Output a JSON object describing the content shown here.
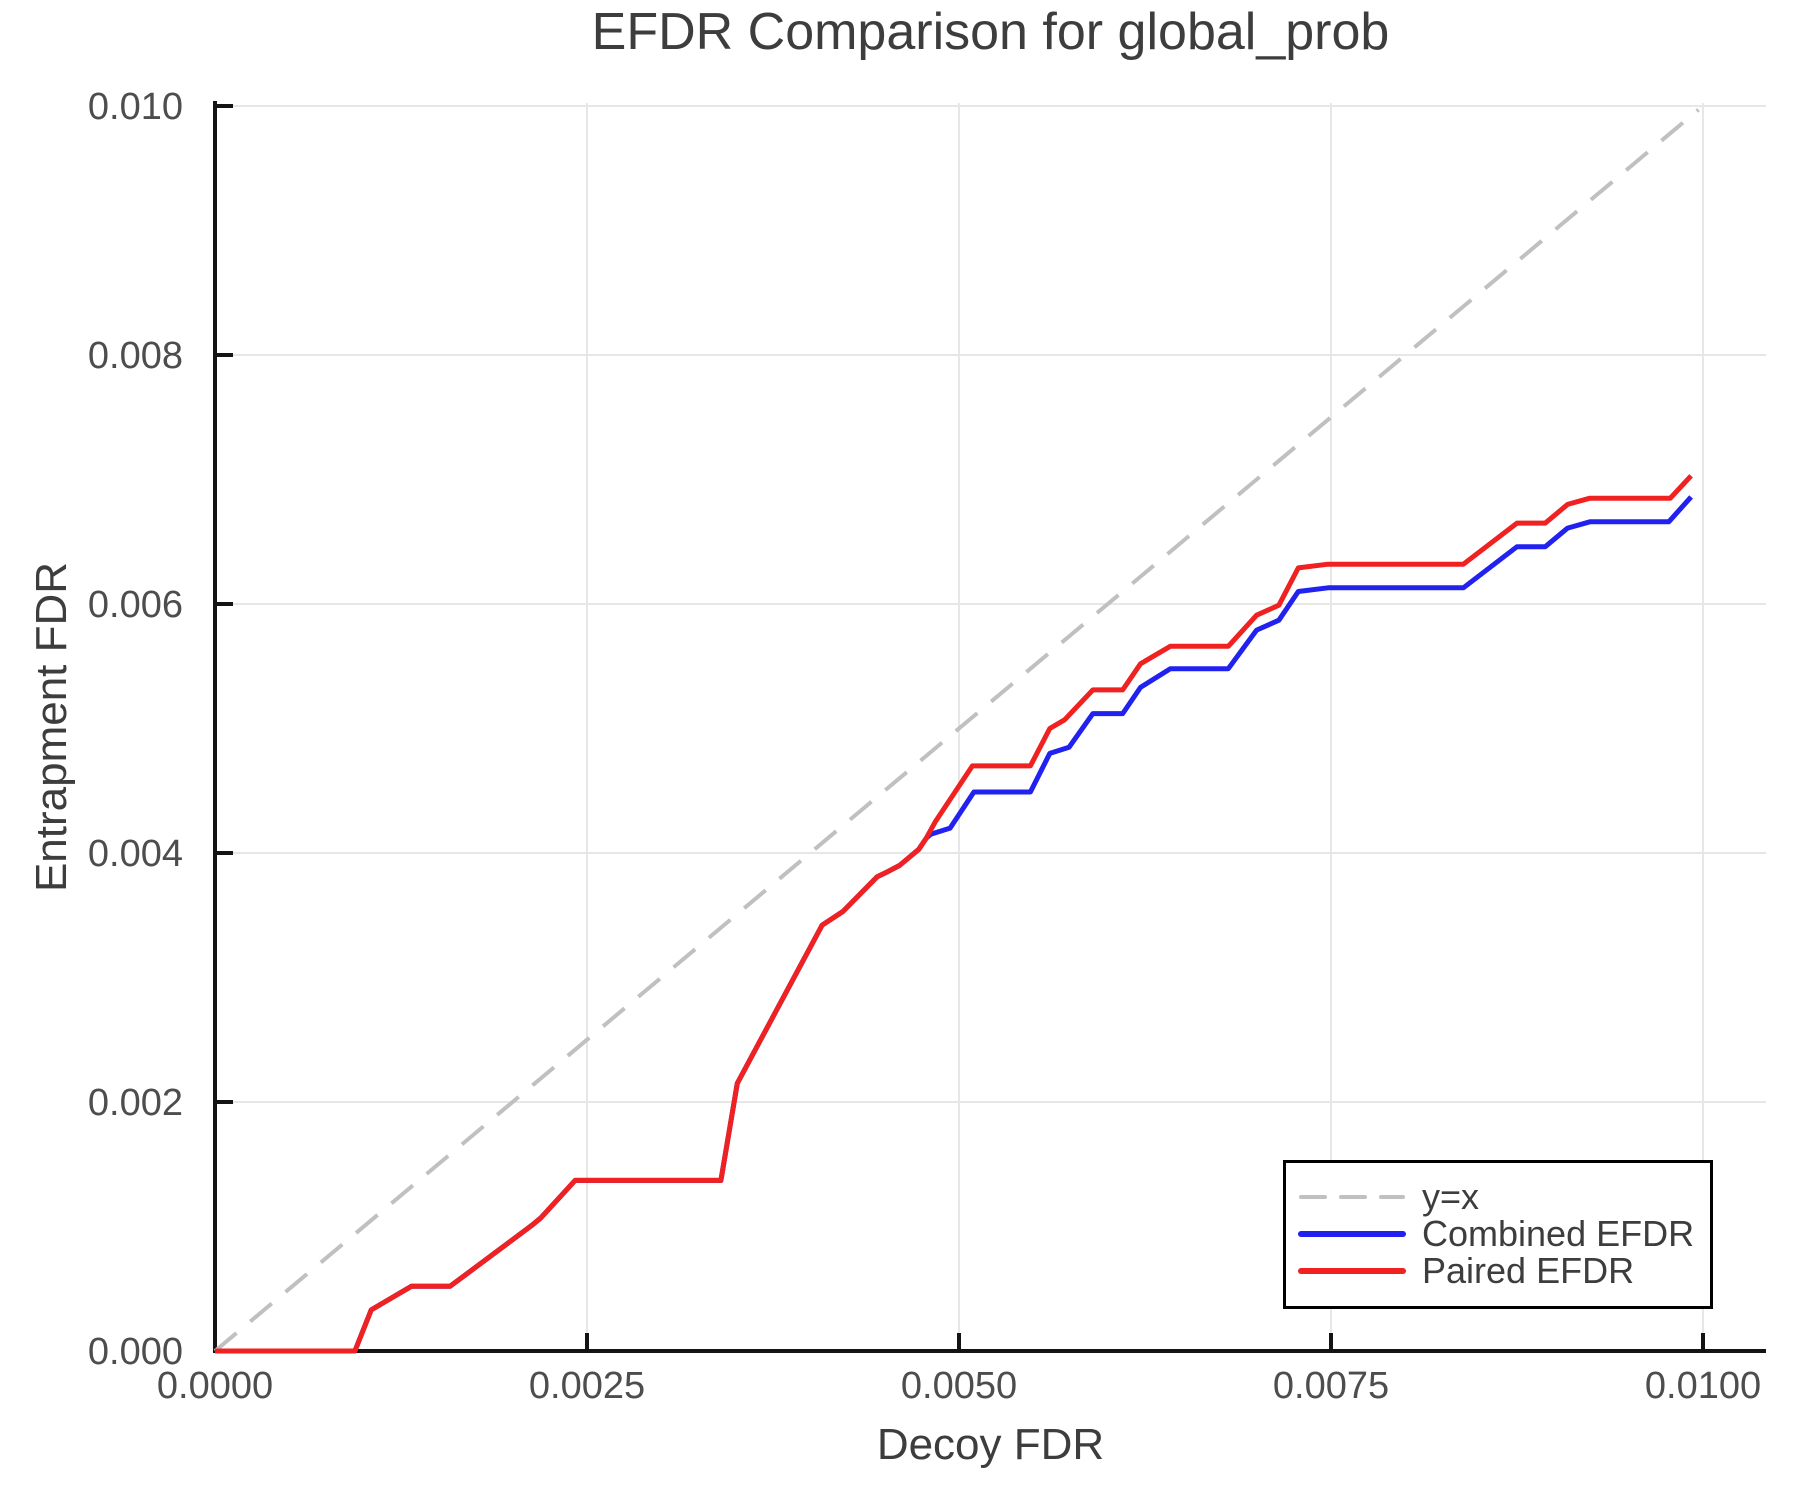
{
  "chart_data": {
    "type": "line",
    "title": "EFDR Comparison for global_prob",
    "xlabel": "Decoy FDR",
    "ylabel": "Entrapment FDR",
    "xlim": [
      0.0,
      0.0104
    ],
    "ylim": [
      0.0,
      0.01002
    ],
    "grid": true,
    "x_ticks": [
      {
        "v": 0.0,
        "label": "0.0000"
      },
      {
        "v": 0.0025,
        "label": "0.0025"
      },
      {
        "v": 0.005,
        "label": "0.0050"
      },
      {
        "v": 0.0075,
        "label": "0.0075"
      },
      {
        "v": 0.01,
        "label": "0.0100"
      }
    ],
    "y_ticks": [
      {
        "v": 0.0,
        "label": "0.000"
      },
      {
        "v": 0.002,
        "label": "0.002"
      },
      {
        "v": 0.004,
        "label": "0.004"
      },
      {
        "v": 0.006,
        "label": "0.006"
      },
      {
        "v": 0.008,
        "label": "0.008"
      },
      {
        "v": 0.01,
        "label": "0.010"
      }
    ],
    "colors": {
      "background": "#FFFFFF",
      "axis": "#141414",
      "grid": "#E7E7E7",
      "title_text": "#3D3D3D",
      "tick_text": "#4D4D4D"
    },
    "legend": {
      "position": "lower right",
      "entries": [
        "y=x",
        "Combined EFDR",
        "Paired EFDR"
      ]
    },
    "series": [
      {
        "name": "y=x",
        "style": "dashed",
        "color": "#C0C0C0",
        "width": 4,
        "points": [
          [
            0.0,
            0.0
          ],
          [
            0.00997,
            0.00997
          ]
        ]
      },
      {
        "name": "Combined EFDR",
        "style": "solid",
        "color": "#2121F0",
        "width": 5,
        "points": [
          [
            0.0,
            0.0
          ],
          [
            0.00094,
            0.0
          ],
          [
            0.00105,
            0.00033
          ],
          [
            0.00132,
            0.00052
          ],
          [
            0.00158,
            0.00052
          ],
          [
            0.00213,
            0.00101
          ],
          [
            0.00219,
            0.00107
          ],
          [
            0.00242,
            0.00137
          ],
          [
            0.0034,
            0.00137
          ],
          [
            0.00351,
            0.00215
          ],
          [
            0.00408,
            0.00342
          ],
          [
            0.00422,
            0.00353
          ],
          [
            0.00445,
            0.00381
          ],
          [
            0.00452,
            0.00385
          ],
          [
            0.0046,
            0.0039
          ],
          [
            0.00473,
            0.00403
          ],
          [
            0.00478,
            0.00412
          ],
          [
            0.00481,
            0.00415
          ],
          [
            0.00494,
            0.0042
          ],
          [
            0.0051,
            0.00449
          ],
          [
            0.00548,
            0.00449
          ],
          [
            0.00561,
            0.0048
          ],
          [
            0.00574,
            0.00485
          ],
          [
            0.0059,
            0.00512
          ],
          [
            0.0061,
            0.00512
          ],
          [
            0.00622,
            0.00533
          ],
          [
            0.00642,
            0.00548
          ],
          [
            0.00681,
            0.00548
          ],
          [
            0.007,
            0.00579
          ],
          [
            0.00715,
            0.00587
          ],
          [
            0.00728,
            0.0061
          ],
          [
            0.00748,
            0.00613
          ],
          [
            0.00839,
            0.00613
          ],
          [
            0.00875,
            0.00646
          ],
          [
            0.00894,
            0.00646
          ],
          [
            0.00909,
            0.00661
          ],
          [
            0.00924,
            0.00666
          ],
          [
            0.00977,
            0.00666
          ],
          [
            0.00992,
            0.00686
          ]
        ]
      },
      {
        "name": "Paired EFDR",
        "style": "solid",
        "color": "#F02121",
        "width": 5,
        "points": [
          [
            0.0,
            0.0
          ],
          [
            0.00094,
            0.0
          ],
          [
            0.00105,
            0.00033
          ],
          [
            0.00132,
            0.00052
          ],
          [
            0.00158,
            0.00052
          ],
          [
            0.00213,
            0.00101
          ],
          [
            0.00219,
            0.00107
          ],
          [
            0.00242,
            0.00137
          ],
          [
            0.0034,
            0.00137
          ],
          [
            0.00351,
            0.00215
          ],
          [
            0.00408,
            0.00342
          ],
          [
            0.00422,
            0.00353
          ],
          [
            0.00445,
            0.00381
          ],
          [
            0.00452,
            0.00385
          ],
          [
            0.0046,
            0.0039
          ],
          [
            0.00473,
            0.00403
          ],
          [
            0.00478,
            0.00412
          ],
          [
            0.00484,
            0.00425
          ],
          [
            0.00509,
            0.0047
          ],
          [
            0.00548,
            0.0047
          ],
          [
            0.00561,
            0.005
          ],
          [
            0.00571,
            0.00507
          ],
          [
            0.0059,
            0.00531
          ],
          [
            0.0061,
            0.00531
          ],
          [
            0.00622,
            0.00552
          ],
          [
            0.00642,
            0.00566
          ],
          [
            0.00681,
            0.00566
          ],
          [
            0.007,
            0.00591
          ],
          [
            0.00715,
            0.00599
          ],
          [
            0.00728,
            0.00629
          ],
          [
            0.00748,
            0.00632
          ],
          [
            0.00839,
            0.00632
          ],
          [
            0.00875,
            0.00665
          ],
          [
            0.00894,
            0.00665
          ],
          [
            0.00909,
            0.0068
          ],
          [
            0.00924,
            0.00685
          ],
          [
            0.00978,
            0.00685
          ],
          [
            0.00992,
            0.00703
          ]
        ]
      }
    ]
  }
}
